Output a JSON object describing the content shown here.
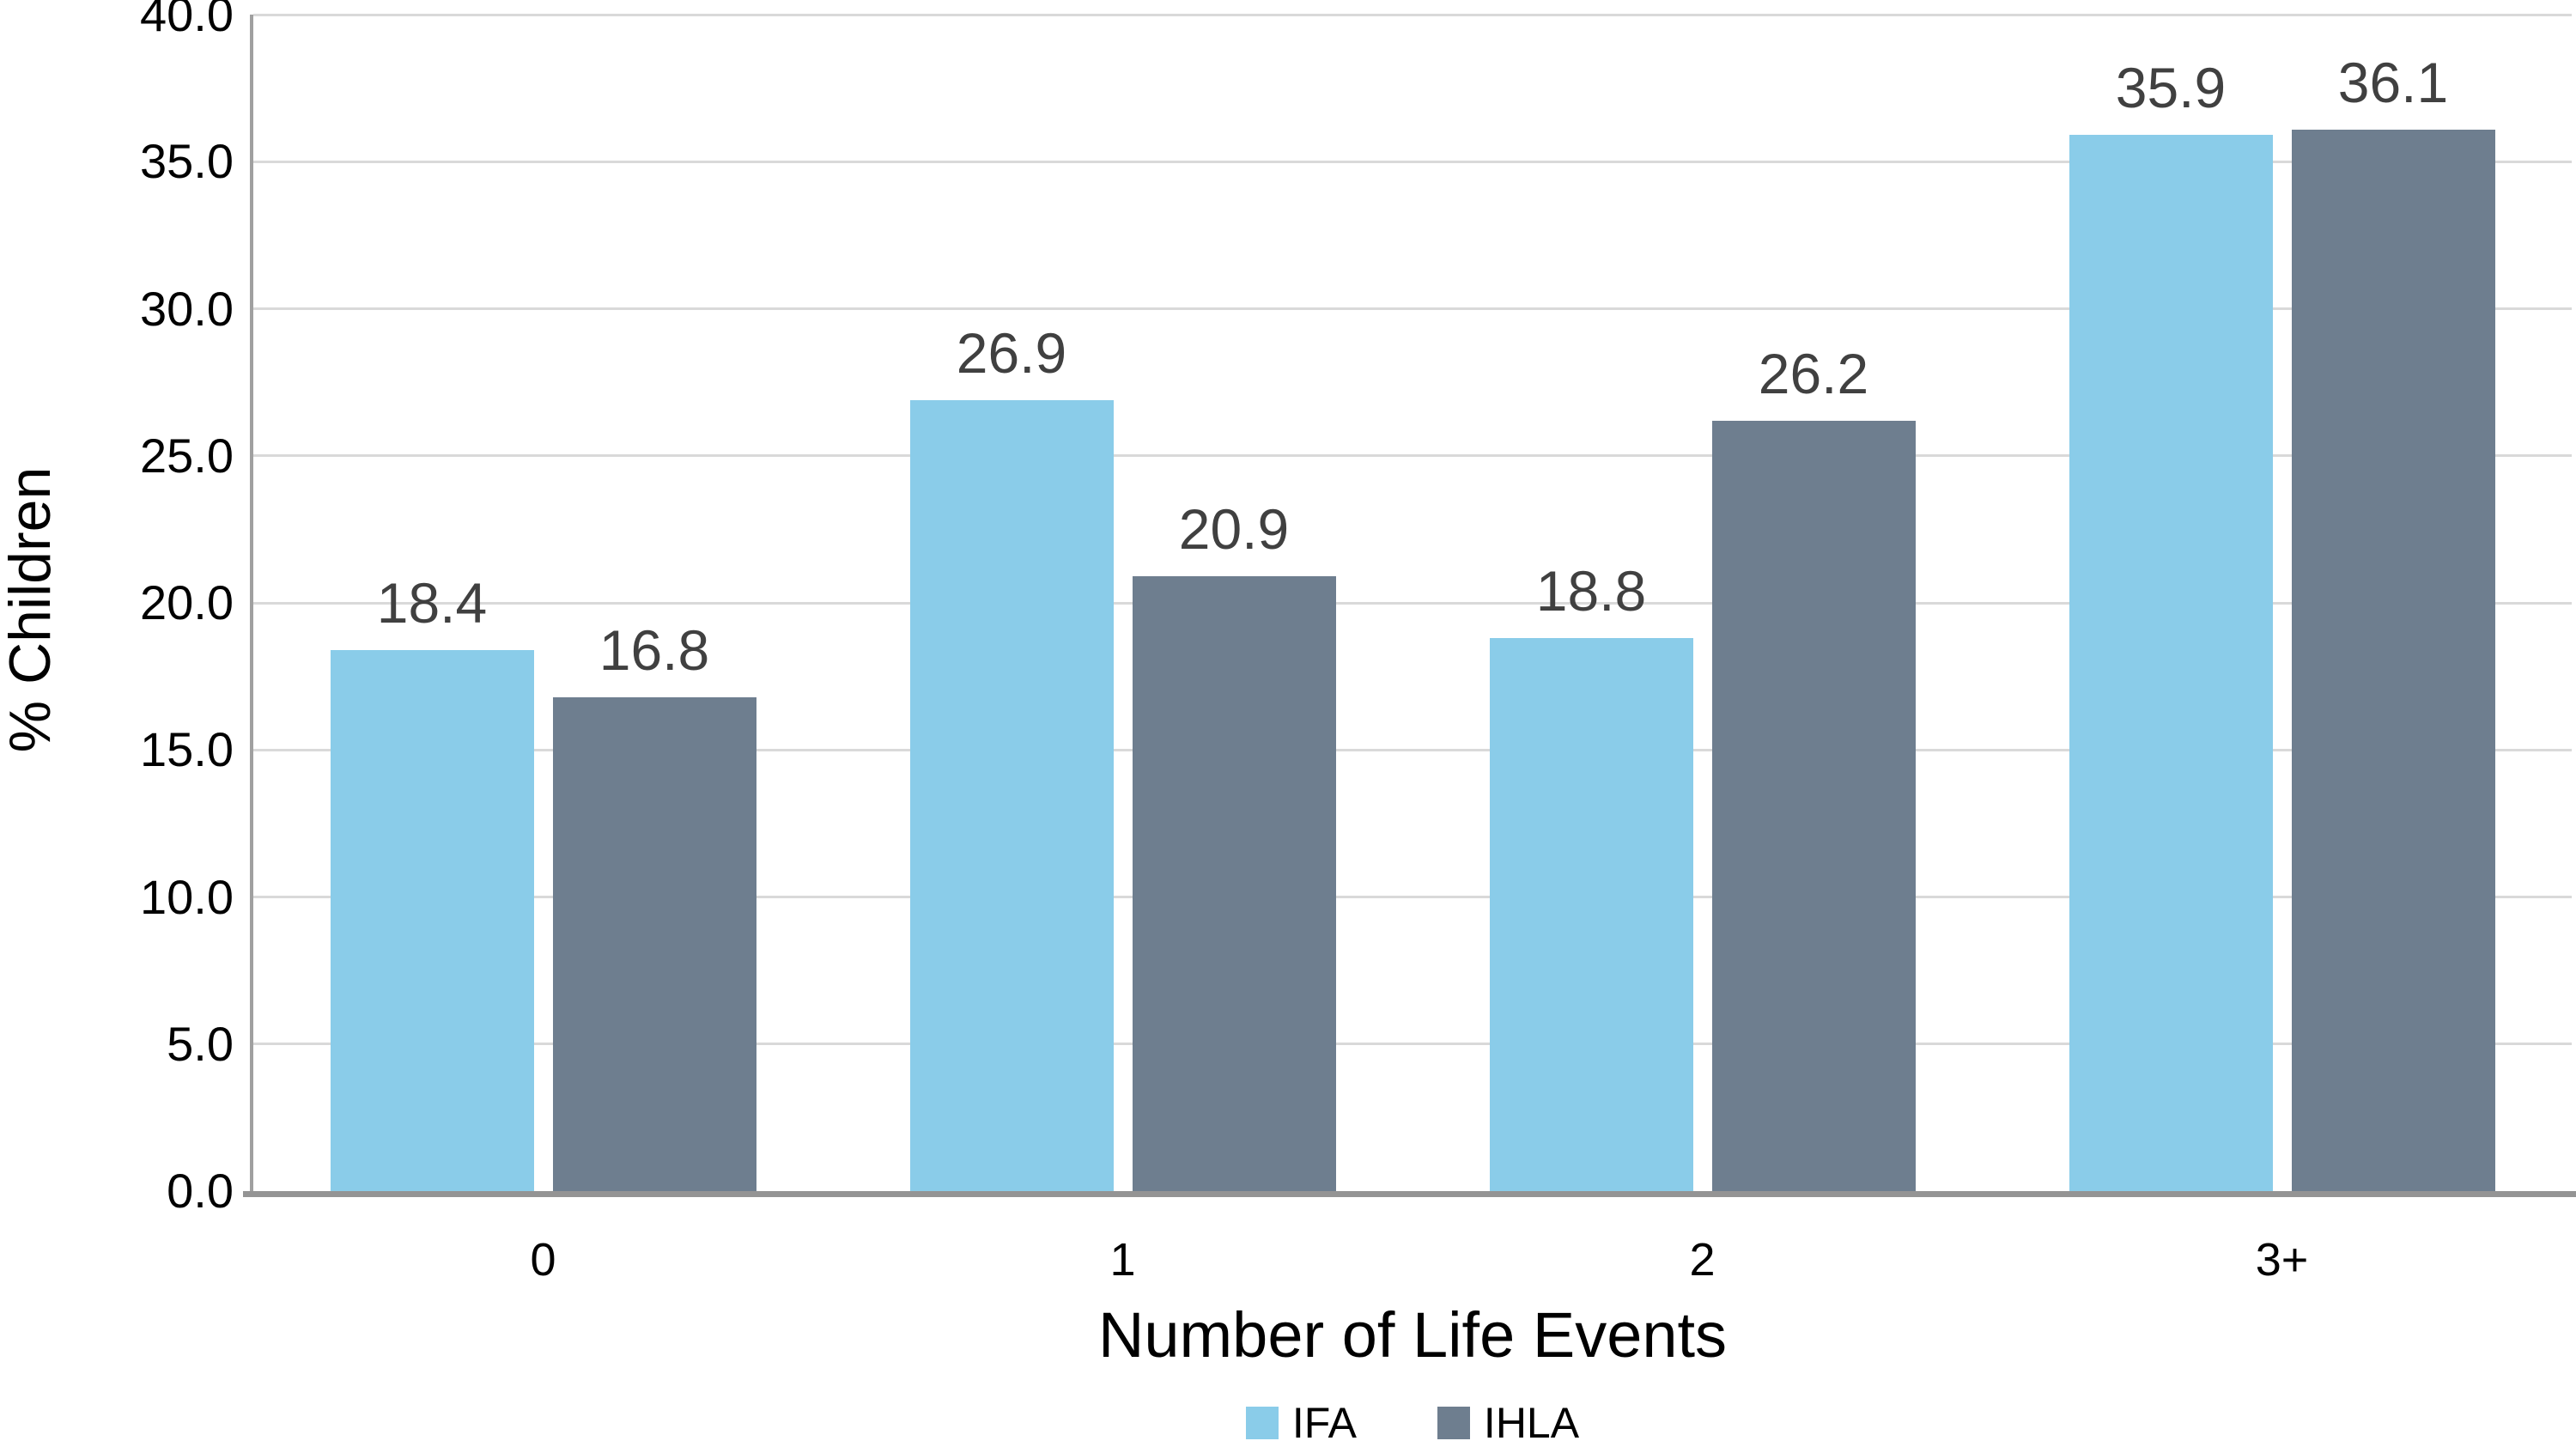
{
  "chart_data": {
    "type": "bar",
    "title": "",
    "xlabel": "Number of Life Events",
    "ylabel": "% Children",
    "categories": [
      "0",
      "1",
      "2",
      "3+"
    ],
    "series": [
      {
        "name": "IFA",
        "color": "#8ACCE9",
        "values": [
          18.4,
          26.9,
          18.8,
          35.9
        ],
        "labels": [
          "18.4",
          "26.9",
          "18.8",
          "35.9"
        ]
      },
      {
        "name": "IHLA",
        "color": "#6E7E8F",
        "values": [
          16.8,
          20.9,
          26.2,
          36.1
        ],
        "labels": [
          "16.8",
          "20.9",
          "26.2",
          "36.1"
        ]
      }
    ],
    "ylim": [
      0,
      40
    ],
    "ytick_step": 5,
    "ytick_labels": [
      "0.0",
      "5.0",
      "10.0",
      "15.0",
      "20.0",
      "25.0",
      "30.0",
      "35.0",
      "40.0"
    ],
    "grid": "horizontal",
    "grid_color": "#D9D9D9",
    "axis_color": "#9A9A9A",
    "value_label_color": "#404040",
    "legend_position": "bottom"
  }
}
